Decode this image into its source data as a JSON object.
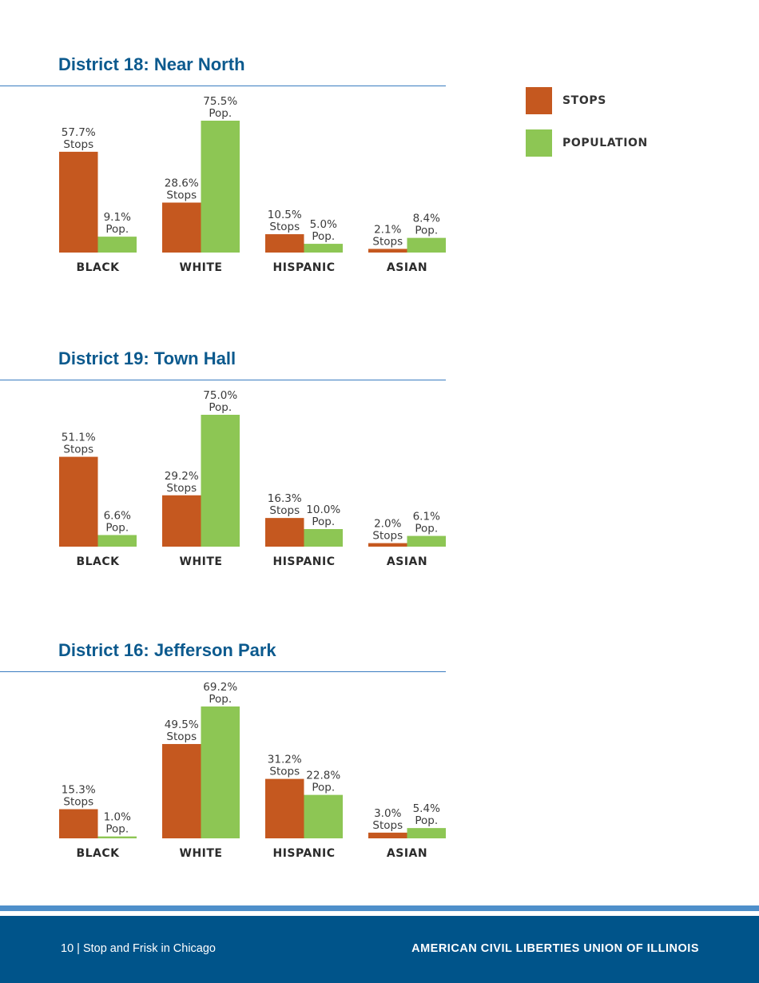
{
  "colors": {
    "stops": "#c5581f",
    "population": "#8dc654",
    "title": "#0c5a8e",
    "footer_bg": "#00548a",
    "footer_stripe": "#4e8fca"
  },
  "legend": {
    "stops_label": "STOPS",
    "population_label": "POPULATION"
  },
  "chart_data": [
    {
      "type": "bar",
      "title": "District 18: Near North",
      "categories": [
        "BLACK",
        "WHITE",
        "HISPANIC",
        "ASIAN"
      ],
      "series": [
        {
          "name": "Stops",
          "values": [
            57.7,
            28.6,
            10.5,
            2.1
          ],
          "labels": [
            "57.7%",
            "28.6%",
            "10.5%",
            "2.1%"
          ],
          "unit": "Stops"
        },
        {
          "name": "Population",
          "values": [
            9.1,
            75.5,
            5.0,
            8.4
          ],
          "labels": [
            "9.1%",
            "75.5%",
            "5.0%",
            "8.4%"
          ],
          "unit": "Pop."
        }
      ],
      "ylim": [
        0,
        75.5
      ]
    },
    {
      "type": "bar",
      "title": "District 19: Town Hall",
      "categories": [
        "BLACK",
        "WHITE",
        "HISPANIC",
        "ASIAN"
      ],
      "series": [
        {
          "name": "Stops",
          "values": [
            51.1,
            29.2,
            16.3,
            2.0
          ],
          "labels": [
            "51.1%",
            "29.2%",
            "16.3%",
            "2.0%"
          ],
          "unit": "Stops"
        },
        {
          "name": "Population",
          "values": [
            6.6,
            75.0,
            10.0,
            6.1
          ],
          "labels": [
            "6.6%",
            "75.0%",
            "10.0%",
            "6.1%"
          ],
          "unit": "Pop."
        }
      ],
      "ylim": [
        0,
        75.0
      ]
    },
    {
      "type": "bar",
      "title": "District 16: Jefferson Park",
      "categories": [
        "BLACK",
        "WHITE",
        "HISPANIC",
        "ASIAN"
      ],
      "series": [
        {
          "name": "Stops",
          "values": [
            15.3,
            49.5,
            31.2,
            3.0
          ],
          "labels": [
            "15.3%",
            "49.5%",
            "31.2%",
            "3.0%"
          ],
          "unit": "Stops"
        },
        {
          "name": "Population",
          "values": [
            1.0,
            69.2,
            22.8,
            5.4
          ],
          "labels": [
            "1.0%",
            "69.2%",
            "22.8%",
            "5.4%"
          ],
          "unit": "Pop."
        }
      ],
      "ylim": [
        0,
        69.2
      ]
    }
  ],
  "footer": {
    "left_text": "10  |  Stop and Frisk in Chicago",
    "right_text": "AMERICAN CIVIL LIBERTIES UNION OF ILLINOIS"
  }
}
